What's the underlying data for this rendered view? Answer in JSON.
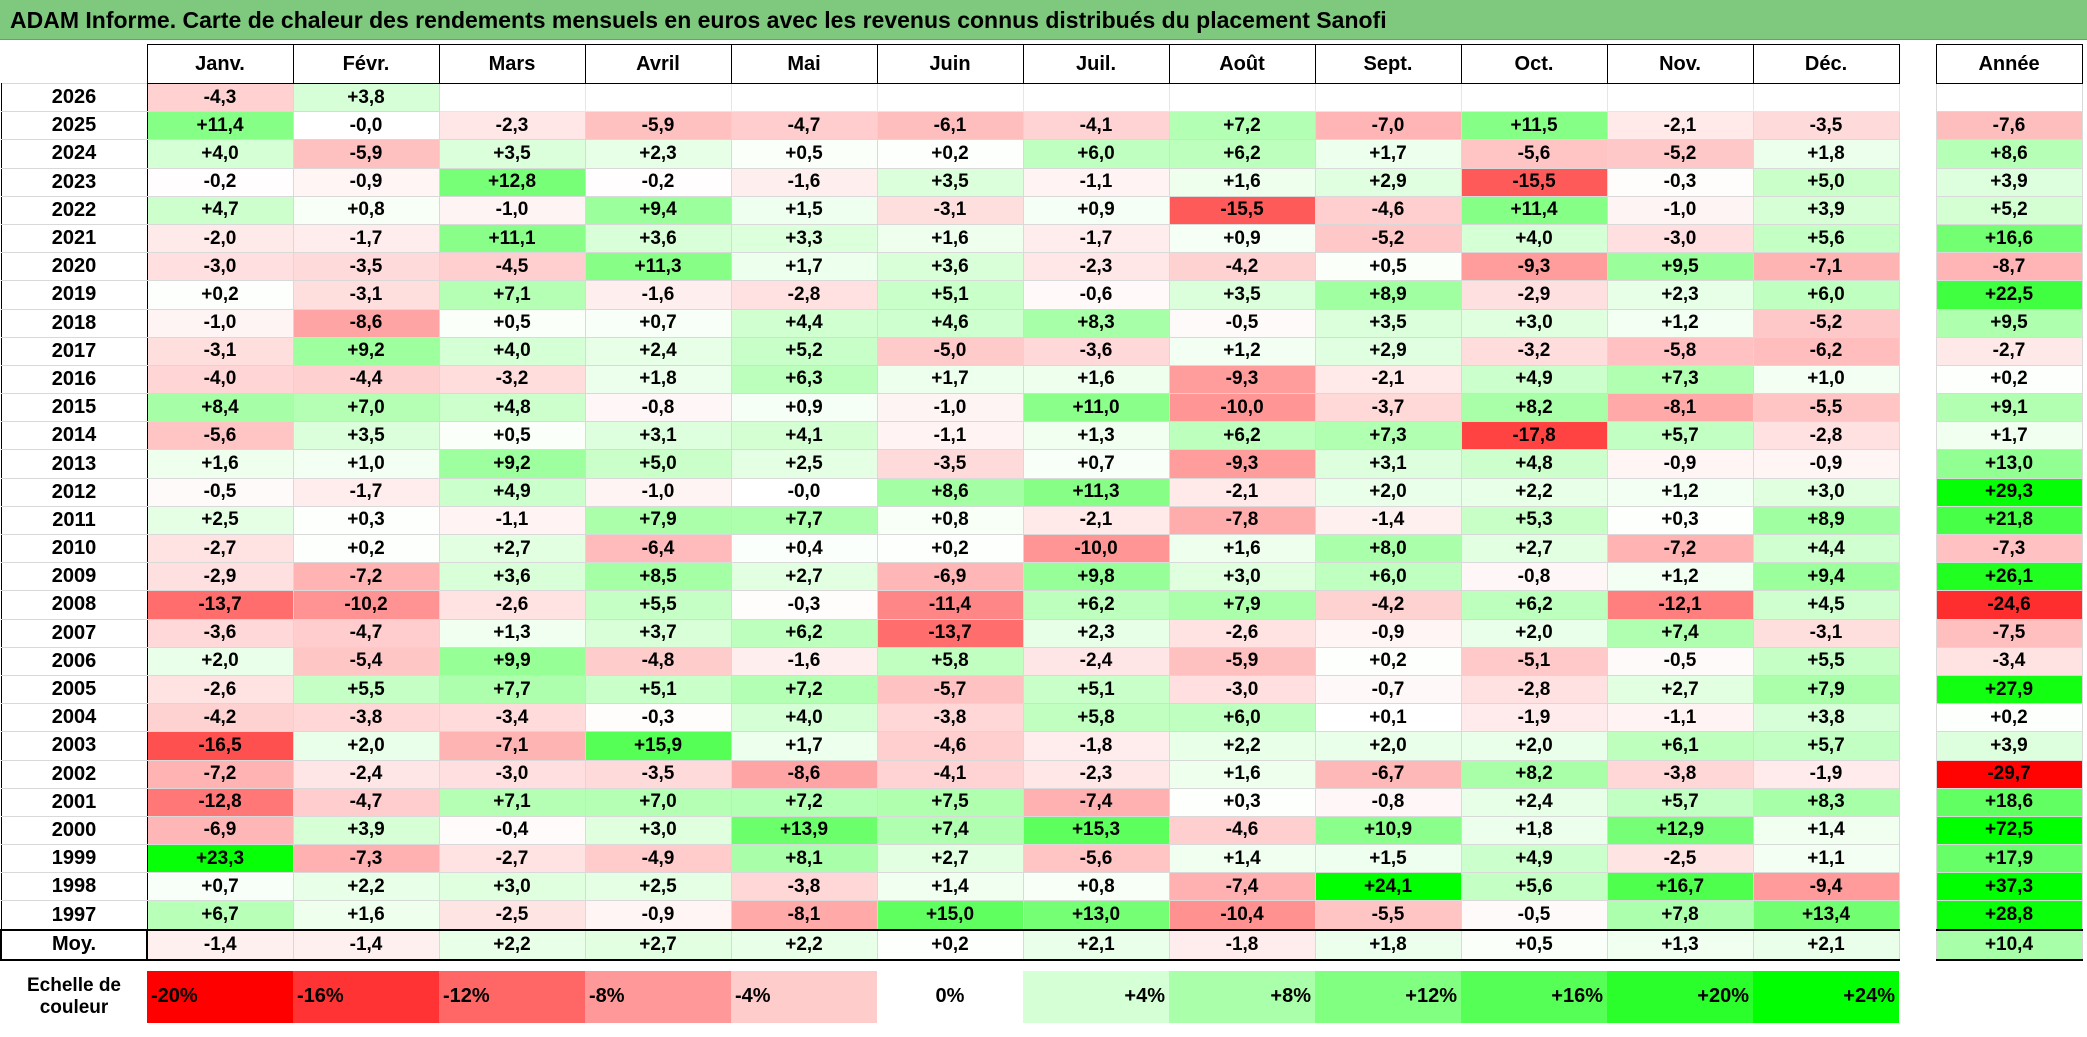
{
  "title": "ADAM Informe. Carte de chaleur des rendements mensuels en euros avec les revenus connus distribués du placement Sanofi",
  "headers": {
    "months": [
      "Janv.",
      "Févr.",
      "Mars",
      "Avril",
      "Mai",
      "Juin",
      "Juil.",
      "Août",
      "Sept.",
      "Oct.",
      "Nov.",
      "Déc."
    ],
    "annual": "Année"
  },
  "chart_data": {
    "type": "heatmap",
    "title": "ADAM Informe. Carte de chaleur des rendements mensuels en euros avec les revenus connus distribués du placement Sanofi",
    "columns": [
      "Janv.",
      "Févr.",
      "Mars",
      "Avril",
      "Mai",
      "Juin",
      "Juil.",
      "Août",
      "Sept.",
      "Oct.",
      "Nov.",
      "Déc."
    ],
    "rows": [
      {
        "year": "2026",
        "values": [
          "-4,3",
          "+3,8",
          "",
          "",
          "",
          "",
          "",
          "",
          "",
          "",
          "",
          ""
        ],
        "annual": ""
      },
      {
        "year": "2025",
        "values": [
          "+11,4",
          "-0,0",
          "-2,3",
          "-5,9",
          "-4,7",
          "-6,1",
          "-4,1",
          "+7,2",
          "-7,0",
          "+11,5",
          "-2,1",
          "-3,5"
        ],
        "annual": "-7,6"
      },
      {
        "year": "2024",
        "values": [
          "+4,0",
          "-5,9",
          "+3,5",
          "+2,3",
          "+0,5",
          "+0,2",
          "+6,0",
          "+6,2",
          "+1,7",
          "-5,6",
          "-5,2",
          "+1,8"
        ],
        "annual": "+8,6"
      },
      {
        "year": "2023",
        "values": [
          "-0,2",
          "-0,9",
          "+12,8",
          "-0,2",
          "-1,6",
          "+3,5",
          "-1,1",
          "+1,6",
          "+2,9",
          "-15,5",
          "-0,3",
          "+5,0"
        ],
        "annual": "+3,9"
      },
      {
        "year": "2022",
        "values": [
          "+4,7",
          "+0,8",
          "-1,0",
          "+9,4",
          "+1,5",
          "-3,1",
          "+0,9",
          "-15,5",
          "-4,6",
          "+11,4",
          "-1,0",
          "+3,9"
        ],
        "annual": "+5,2"
      },
      {
        "year": "2021",
        "values": [
          "-2,0",
          "-1,7",
          "+11,1",
          "+3,6",
          "+3,3",
          "+1,6",
          "-1,7",
          "+0,9",
          "-5,2",
          "+4,0",
          "-3,0",
          "+5,6"
        ],
        "annual": "+16,6"
      },
      {
        "year": "2020",
        "values": [
          "-3,0",
          "-3,5",
          "-4,5",
          "+11,3",
          "+1,7",
          "+3,6",
          "-2,3",
          "-4,2",
          "+0,5",
          "-9,3",
          "+9,5",
          "-7,1"
        ],
        "annual": "-8,7"
      },
      {
        "year": "2019",
        "values": [
          "+0,2",
          "-3,1",
          "+7,1",
          "-1,6",
          "-2,8",
          "+5,1",
          "-0,6",
          "+3,5",
          "+8,9",
          "-2,9",
          "+2,3",
          "+6,0"
        ],
        "annual": "+22,5"
      },
      {
        "year": "2018",
        "values": [
          "-1,0",
          "-8,6",
          "+0,5",
          "+0,7",
          "+4,4",
          "+4,6",
          "+8,3",
          "-0,5",
          "+3,5",
          "+3,0",
          "+1,2",
          "-5,2"
        ],
        "annual": "+9,5"
      },
      {
        "year": "2017",
        "values": [
          "-3,1",
          "+9,2",
          "+4,0",
          "+2,4",
          "+5,2",
          "-5,0",
          "-3,6",
          "+1,2",
          "+2,9",
          "-3,2",
          "-5,8",
          "-6,2"
        ],
        "annual": "-2,7"
      },
      {
        "year": "2016",
        "values": [
          "-4,0",
          "-4,4",
          "-3,2",
          "+1,8",
          "+6,3",
          "+1,7",
          "+1,6",
          "-9,3",
          "-2,1",
          "+4,9",
          "+7,3",
          "+1,0"
        ],
        "annual": "+0,2"
      },
      {
        "year": "2015",
        "values": [
          "+8,4",
          "+7,0",
          "+4,8",
          "-0,8",
          "+0,9",
          "-1,0",
          "+11,0",
          "-10,0",
          "-3,7",
          "+8,2",
          "-8,1",
          "-5,5"
        ],
        "annual": "+9,1"
      },
      {
        "year": "2014",
        "values": [
          "-5,6",
          "+3,5",
          "+0,5",
          "+3,1",
          "+4,1",
          "-1,1",
          "+1,3",
          "+6,2",
          "+7,3",
          "-17,8",
          "+5,7",
          "-2,8"
        ],
        "annual": "+1,7"
      },
      {
        "year": "2013",
        "values": [
          "+1,6",
          "+1,0",
          "+9,2",
          "+5,0",
          "+2,5",
          "-3,5",
          "+0,7",
          "-9,3",
          "+3,1",
          "+4,8",
          "-0,9",
          "-0,9"
        ],
        "annual": "+13,0"
      },
      {
        "year": "2012",
        "values": [
          "-0,5",
          "-1,7",
          "+4,9",
          "-1,0",
          "-0,0",
          "+8,6",
          "+11,3",
          "-2,1",
          "+2,0",
          "+2,2",
          "+1,2",
          "+3,0"
        ],
        "annual": "+29,3"
      },
      {
        "year": "2011",
        "values": [
          "+2,5",
          "+0,3",
          "-1,1",
          "+7,9",
          "+7,7",
          "+0,8",
          "-2,1",
          "-7,8",
          "-1,4",
          "+5,3",
          "+0,3",
          "+8,9"
        ],
        "annual": "+21,8"
      },
      {
        "year": "2010",
        "values": [
          "-2,7",
          "+0,2",
          "+2,7",
          "-6,4",
          "+0,4",
          "+0,2",
          "-10,0",
          "+1,6",
          "+8,0",
          "+2,7",
          "-7,2",
          "+4,4"
        ],
        "annual": "-7,3"
      },
      {
        "year": "2009",
        "values": [
          "-2,9",
          "-7,2",
          "+3,6",
          "+8,5",
          "+2,7",
          "-6,9",
          "+9,8",
          "+3,0",
          "+6,0",
          "-0,8",
          "+1,2",
          "+9,4"
        ],
        "annual": "+26,1"
      },
      {
        "year": "2008",
        "values": [
          "-13,7",
          "-10,2",
          "-2,6",
          "+5,5",
          "-0,3",
          "-11,4",
          "+6,2",
          "+7,9",
          "-4,2",
          "+6,2",
          "-12,1",
          "+4,5"
        ],
        "annual": "-24,6"
      },
      {
        "year": "2007",
        "values": [
          "-3,6",
          "-4,7",
          "+1,3",
          "+3,7",
          "+6,2",
          "-13,7",
          "+2,3",
          "-2,6",
          "-0,9",
          "+2,0",
          "+7,4",
          "-3,1"
        ],
        "annual": "-7,5"
      },
      {
        "year": "2006",
        "values": [
          "+2,0",
          "-5,4",
          "+9,9",
          "-4,8",
          "-1,6",
          "+5,8",
          "-2,4",
          "-5,9",
          "+0,2",
          "-5,1",
          "-0,5",
          "+5,5"
        ],
        "annual": "-3,4"
      },
      {
        "year": "2005",
        "values": [
          "-2,6",
          "+5,5",
          "+7,7",
          "+5,1",
          "+7,2",
          "-5,7",
          "+5,1",
          "-3,0",
          "-0,7",
          "-2,8",
          "+2,7",
          "+7,9"
        ],
        "annual": "+27,9"
      },
      {
        "year": "2004",
        "values": [
          "-4,2",
          "-3,8",
          "-3,4",
          "-0,3",
          "+4,0",
          "-3,8",
          "+5,8",
          "+6,0",
          "+0,1",
          "-1,9",
          "-1,1",
          "+3,8"
        ],
        "annual": "+0,2"
      },
      {
        "year": "2003",
        "values": [
          "-16,5",
          "+2,0",
          "-7,1",
          "+15,9",
          "+1,7",
          "-4,6",
          "-1,8",
          "+2,2",
          "+2,0",
          "+2,0",
          "+6,1",
          "+5,7"
        ],
        "annual": "+3,9"
      },
      {
        "year": "2002",
        "values": [
          "-7,2",
          "-2,4",
          "-3,0",
          "-3,5",
          "-8,6",
          "-4,1",
          "-2,3",
          "+1,6",
          "-6,7",
          "+8,2",
          "-3,8",
          "-1,9"
        ],
        "annual": "-29,7"
      },
      {
        "year": "2001",
        "values": [
          "-12,8",
          "-4,7",
          "+7,1",
          "+7,0",
          "+7,2",
          "+7,5",
          "-7,4",
          "+0,3",
          "-0,8",
          "+2,4",
          "+5,7",
          "+8,3"
        ],
        "annual": "+18,6"
      },
      {
        "year": "2000",
        "values": [
          "-6,9",
          "+3,9",
          "-0,4",
          "+3,0",
          "+13,9",
          "+7,4",
          "+15,3",
          "-4,6",
          "+10,9",
          "+1,8",
          "+12,9",
          "+1,4"
        ],
        "annual": "+72,5"
      },
      {
        "year": "1999",
        "values": [
          "+23,3",
          "-7,3",
          "-2,7",
          "-4,9",
          "+8,1",
          "+2,7",
          "-5,6",
          "+1,4",
          "+1,5",
          "+4,9",
          "-2,5",
          "+1,1"
        ],
        "annual": "+17,9"
      },
      {
        "year": "1998",
        "values": [
          "+0,7",
          "+2,2",
          "+3,0",
          "+2,5",
          "-3,8",
          "+1,4",
          "+0,8",
          "-7,4",
          "+24,1",
          "+5,6",
          "+16,7",
          "-9,4"
        ],
        "annual": "+37,3"
      },
      {
        "year": "1997",
        "values": [
          "+6,7",
          "+1,6",
          "-2,5",
          "-0,9",
          "-8,1",
          "+15,0",
          "+13,0",
          "-10,4",
          "-5,5",
          "-0,5",
          "+7,8",
          "+13,4"
        ],
        "annual": "+28,8"
      }
    ],
    "average": {
      "label": "Moy.",
      "values": [
        "-1,4",
        "-1,4",
        "+2,2",
        "+2,7",
        "+2,2",
        "+0,2",
        "+2,1",
        "-1,8",
        "+1,8",
        "+0,5",
        "+1,3",
        "+2,1"
      ],
      "annual": "+10,4"
    },
    "scale": {
      "label": "Echelle de couleur",
      "labels": [
        "-20%",
        "-16%",
        "-12%",
        "-8%",
        "-4%",
        "0%",
        "+4%",
        "+8%",
        "+12%",
        "+16%",
        "+20%",
        "+24%"
      ],
      "values": [
        -20,
        -16,
        -12,
        -8,
        -4,
        0,
        4,
        8,
        12,
        16,
        20,
        24
      ]
    },
    "colors": {
      "negative_max": "#ff0000",
      "neutral": "#ffffff",
      "positive_max": "#00ff00"
    }
  }
}
